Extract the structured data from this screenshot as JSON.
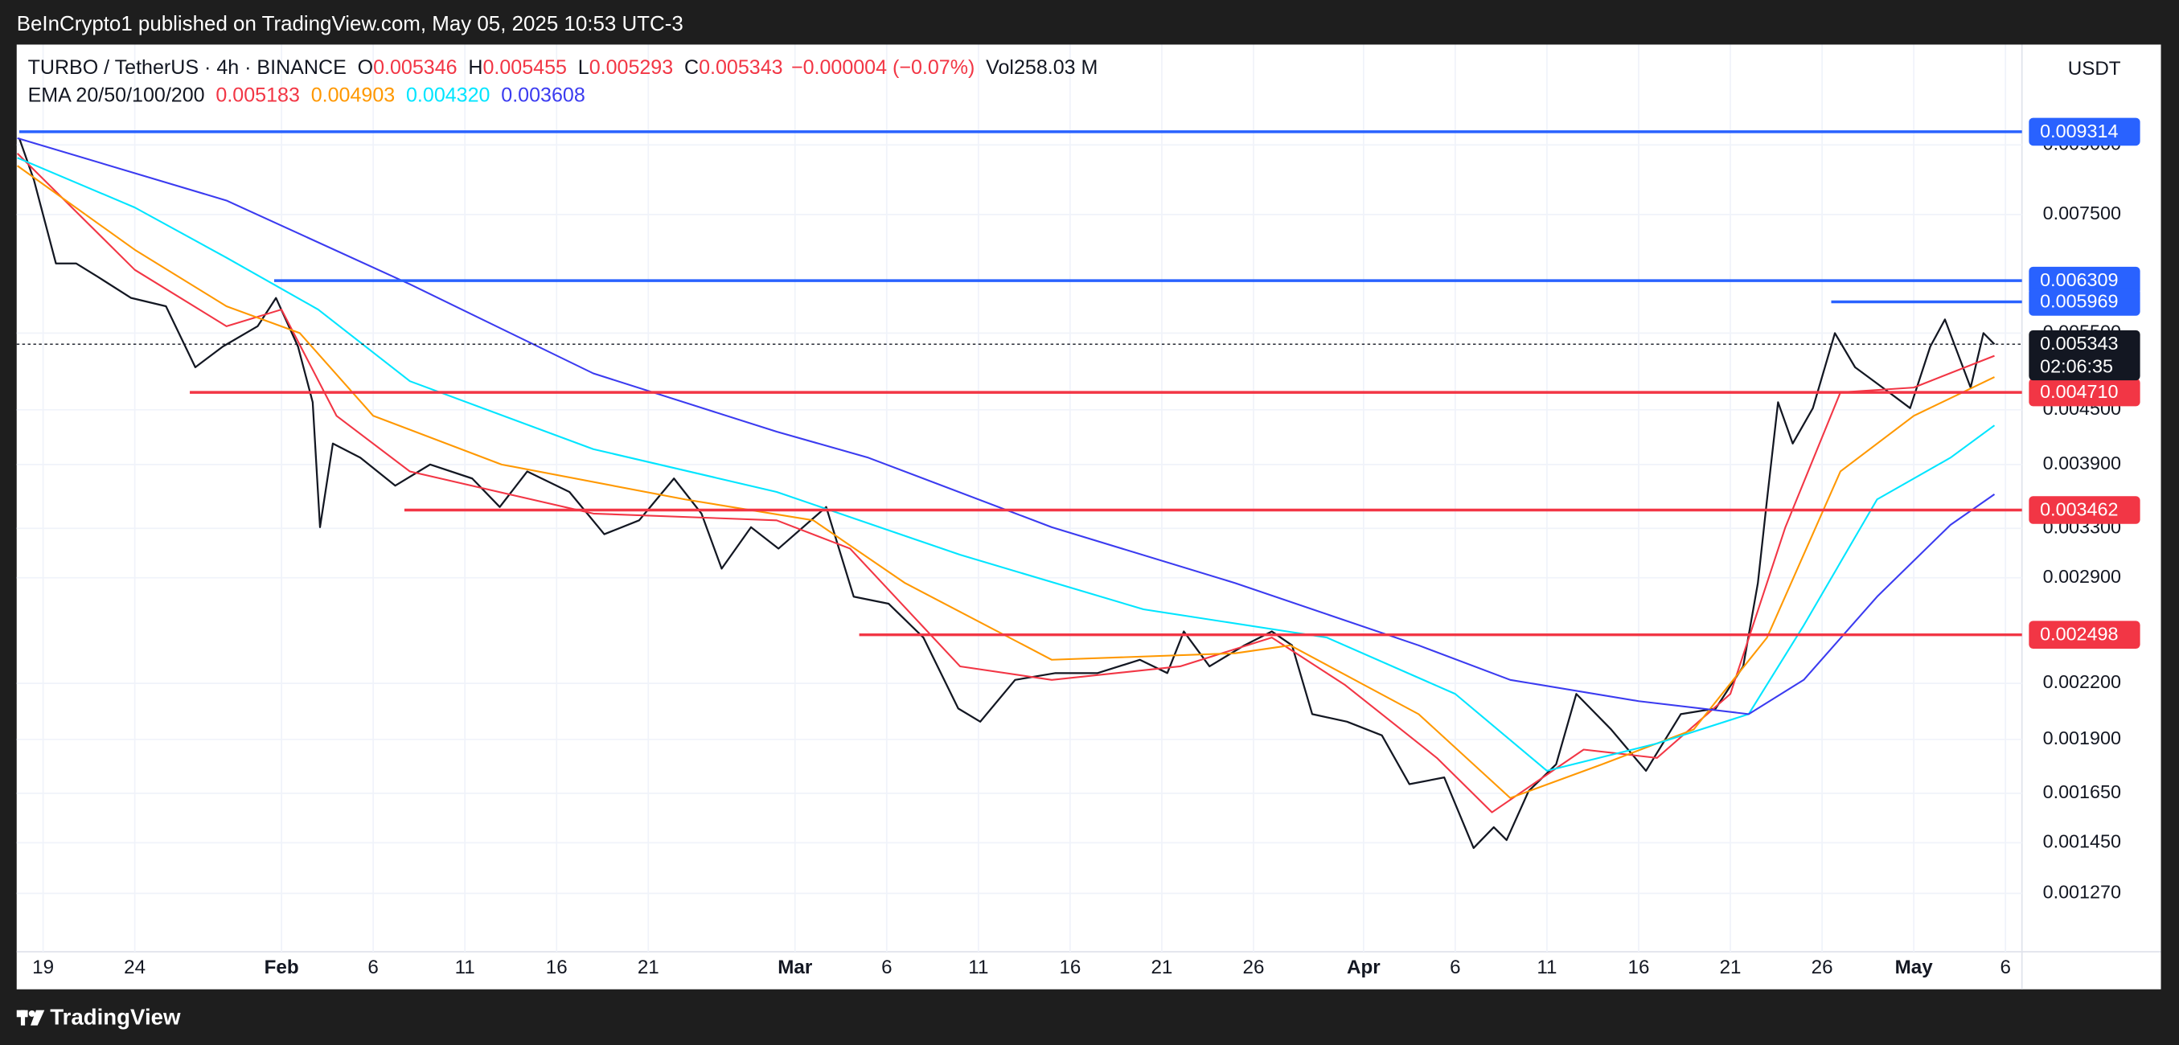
{
  "header": {
    "publisher": "BeInCrypto1 published on TradingView.com, May 05, 2025 10:53 UTC-3",
    "symbol": "TURBO / TetherUS · 4h · BINANCE",
    "ohlc": [
      {
        "label": "O",
        "value": "0.005346"
      },
      {
        "label": "H",
        "value": "0.005455"
      },
      {
        "label": "L",
        "value": "0.005293"
      },
      {
        "label": "C",
        "value": "0.005343"
      }
    ],
    "change": "−0.000004 (−0.07%)",
    "volume": {
      "label": "Vol",
      "value": "258.03 M"
    },
    "indicator": "EMA 20/50/100/200",
    "ema_values": [
      "0.005183",
      "0.004903",
      "0.004320",
      "0.003608"
    ],
    "currency": "USDT"
  },
  "chart_data": {
    "type": "line",
    "log_y": true,
    "grid": true,
    "xlim": [
      -1.44,
      107.9
    ],
    "ylim": [
      0.00109,
      0.0117
    ],
    "xticks": [
      {
        "value": 0,
        "label": "19"
      },
      {
        "value": 5,
        "label": "24"
      },
      {
        "value": 13,
        "label": "Feb",
        "bold": true
      },
      {
        "value": 18,
        "label": "6"
      },
      {
        "value": 23,
        "label": "11"
      },
      {
        "value": 28,
        "label": "16"
      },
      {
        "value": 33,
        "label": "21"
      },
      {
        "value": 41,
        "label": "Mar",
        "bold": true
      },
      {
        "value": 46,
        "label": "6"
      },
      {
        "value": 51,
        "label": "11"
      },
      {
        "value": 56,
        "label": "16"
      },
      {
        "value": 61,
        "label": "21"
      },
      {
        "value": 66,
        "label": "26"
      },
      {
        "value": 72,
        "label": "Apr",
        "bold": true
      },
      {
        "value": 77,
        "label": "6"
      },
      {
        "value": 82,
        "label": "11"
      },
      {
        "value": 87,
        "label": "16"
      },
      {
        "value": 92,
        "label": "21"
      },
      {
        "value": 97,
        "label": "26"
      },
      {
        "value": 102,
        "label": "May",
        "bold": true
      },
      {
        "value": 107,
        "label": "6"
      }
    ],
    "yticks": [
      {
        "value": 0.00127,
        "label": "0.001270"
      },
      {
        "value": 0.00145,
        "label": "0.001450"
      },
      {
        "value": 0.00165,
        "label": "0.001650"
      },
      {
        "value": 0.0019,
        "label": "0.001900"
      },
      {
        "value": 0.0022,
        "label": "0.002200"
      },
      {
        "value": 0.0029,
        "label": "0.002900"
      },
      {
        "value": 0.0033,
        "label": "0.003300"
      },
      {
        "value": 0.0039,
        "label": "0.003900"
      },
      {
        "value": 0.0045,
        "label": "0.004500"
      },
      {
        "value": 0.0055,
        "label": "0.005500"
      },
      {
        "value": 0.0075,
        "label": "0.007500"
      },
      {
        "value": 0.009,
        "label": "0.009000"
      }
    ],
    "series": [
      {
        "color": "#131722",
        "width": 1.3,
        "x": [
          -1.3,
          -0.5,
          0.7,
          1.8,
          3,
          4.8,
          6.7,
          8.3,
          9.8,
          11.7,
          12.7,
          13.9,
          14.7,
          15.1,
          15.8,
          17.3,
          19.2,
          21.1,
          23.4,
          24.9,
          26.4,
          28.7,
          30.6,
          32.5,
          34.4,
          35.9,
          37,
          38.6,
          40.1,
          42.7,
          44.2,
          46.1,
          48,
          49.9,
          51.1,
          53,
          55.2,
          57.5,
          59.8,
          61.3,
          62.2,
          63.6,
          65.5,
          67,
          68.1,
          69.2,
          71.1,
          73,
          74.5,
          76.4,
          78,
          79.1,
          79.8,
          81,
          82.5,
          83.6,
          85.5,
          87.4,
          89.3,
          91.2,
          92.7,
          93.5,
          94,
          94.6,
          95.4,
          96.5,
          97.7,
          98.8,
          100.3,
          101.8,
          102.9,
          103.7,
          105.1,
          105.8,
          106.4
        ],
        "values": [
          0.00916,
          0.00821,
          0.0066,
          0.0066,
          0.00637,
          0.00603,
          0.0059,
          0.00503,
          0.00531,
          0.0056,
          0.00603,
          0.00531,
          0.00459,
          0.00331,
          0.00412,
          0.00397,
          0.00369,
          0.0039,
          0.00376,
          0.00349,
          0.00383,
          0.00363,
          0.00325,
          0.00337,
          0.00376,
          0.00343,
          0.00297,
          0.00331,
          0.00313,
          0.00349,
          0.00276,
          0.00271,
          0.00248,
          0.00206,
          0.00199,
          0.00222,
          0.00226,
          0.00226,
          0.00234,
          0.00226,
          0.00252,
          0.0023,
          0.00243,
          0.00252,
          0.00243,
          0.00203,
          0.00199,
          0.00192,
          0.00169,
          0.00172,
          0.00143,
          0.00151,
          0.00146,
          0.00166,
          0.00178,
          0.00214,
          0.00195,
          0.00175,
          0.00203,
          0.00206,
          0.0023,
          0.00286,
          0.00356,
          0.00459,
          0.00412,
          0.00452,
          0.0055,
          0.00503,
          0.00477,
          0.00452,
          0.00531,
          0.0057,
          0.00477,
          0.0055,
          0.005343
        ]
      },
      {
        "color": "#f23645",
        "width": 1.2,
        "x": [
          -1.4,
          5,
          10,
          13,
          16,
          20,
          30,
          40,
          44,
          50,
          55,
          62,
          67,
          71,
          76,
          79,
          84,
          88,
          92,
          95,
          98,
          102,
          106.4
        ],
        "values": [
          0.0088,
          0.00649,
          0.0056,
          0.00585,
          0.00443,
          0.00383,
          0.00343,
          0.00337,
          0.00313,
          0.0023,
          0.00222,
          0.0023,
          0.00248,
          0.00219,
          0.00181,
          0.00157,
          0.00185,
          0.00181,
          0.00214,
          0.00331,
          0.00471,
          0.00477,
          0.005183
        ]
      },
      {
        "color": "#ff9800",
        "width": 1.2,
        "x": [
          -1.4,
          5,
          10,
          14,
          18,
          25,
          35,
          42,
          47,
          55,
          65,
          68,
          75,
          80,
          85,
          90,
          94,
          98,
          102,
          106.4
        ],
        "values": [
          0.00852,
          0.00684,
          0.0059,
          0.0055,
          0.00443,
          0.0039,
          0.00356,
          0.00337,
          0.00286,
          0.00234,
          0.00238,
          0.00243,
          0.00203,
          0.00163,
          0.00178,
          0.00195,
          0.00248,
          0.00383,
          0.00443,
          0.004903
        ]
      },
      {
        "color": "#00e5ff",
        "width": 1.2,
        "x": [
          -1.4,
          5,
          10,
          15,
          20,
          30,
          40,
          50,
          60,
          70,
          77,
          82,
          88,
          93,
          96,
          100,
          104,
          106.4
        ],
        "values": [
          0.0087,
          0.00764,
          0.0067,
          0.00585,
          0.00485,
          0.00406,
          0.00363,
          0.00308,
          0.00267,
          0.00248,
          0.00214,
          0.00175,
          0.00188,
          0.00203,
          0.00256,
          0.00356,
          0.00397,
          0.00432
        ]
      },
      {
        "color": "#3b3bf0",
        "width": 1.2,
        "x": [
          -1.4,
          10,
          20,
          30,
          40,
          45,
          55,
          65,
          75,
          80,
          87,
          93,
          96,
          100,
          104,
          106.4
        ],
        "values": [
          0.00916,
          0.00778,
          0.00625,
          0.00495,
          0.00425,
          0.00397,
          0.00331,
          0.00286,
          0.00243,
          0.00222,
          0.0021,
          0.00203,
          0.00222,
          0.00276,
          0.00333,
          0.003608
        ]
      }
    ],
    "levels": {
      "values": [
        0.009314,
        0.006309,
        0.005969,
        0.00471,
        0.003462,
        0.002498
      ],
      "value_labels": [
        "0.009314",
        "0.006309",
        "0.005969",
        "0.004710",
        "0.003462",
        "0.002498"
      ],
      "start": [
        -1.3,
        12.6,
        97.5,
        8,
        19.7,
        44.5
      ],
      "colors": [
        "#2962ff",
        "#2962ff",
        "#2962ff",
        "#f23645",
        "#f23645",
        "#f23645"
      ]
    },
    "last_price": {
      "value": 0.005343,
      "label": "0.005343",
      "countdown": "02:06:35"
    }
  },
  "footer": {
    "brand": "TradingView"
  }
}
